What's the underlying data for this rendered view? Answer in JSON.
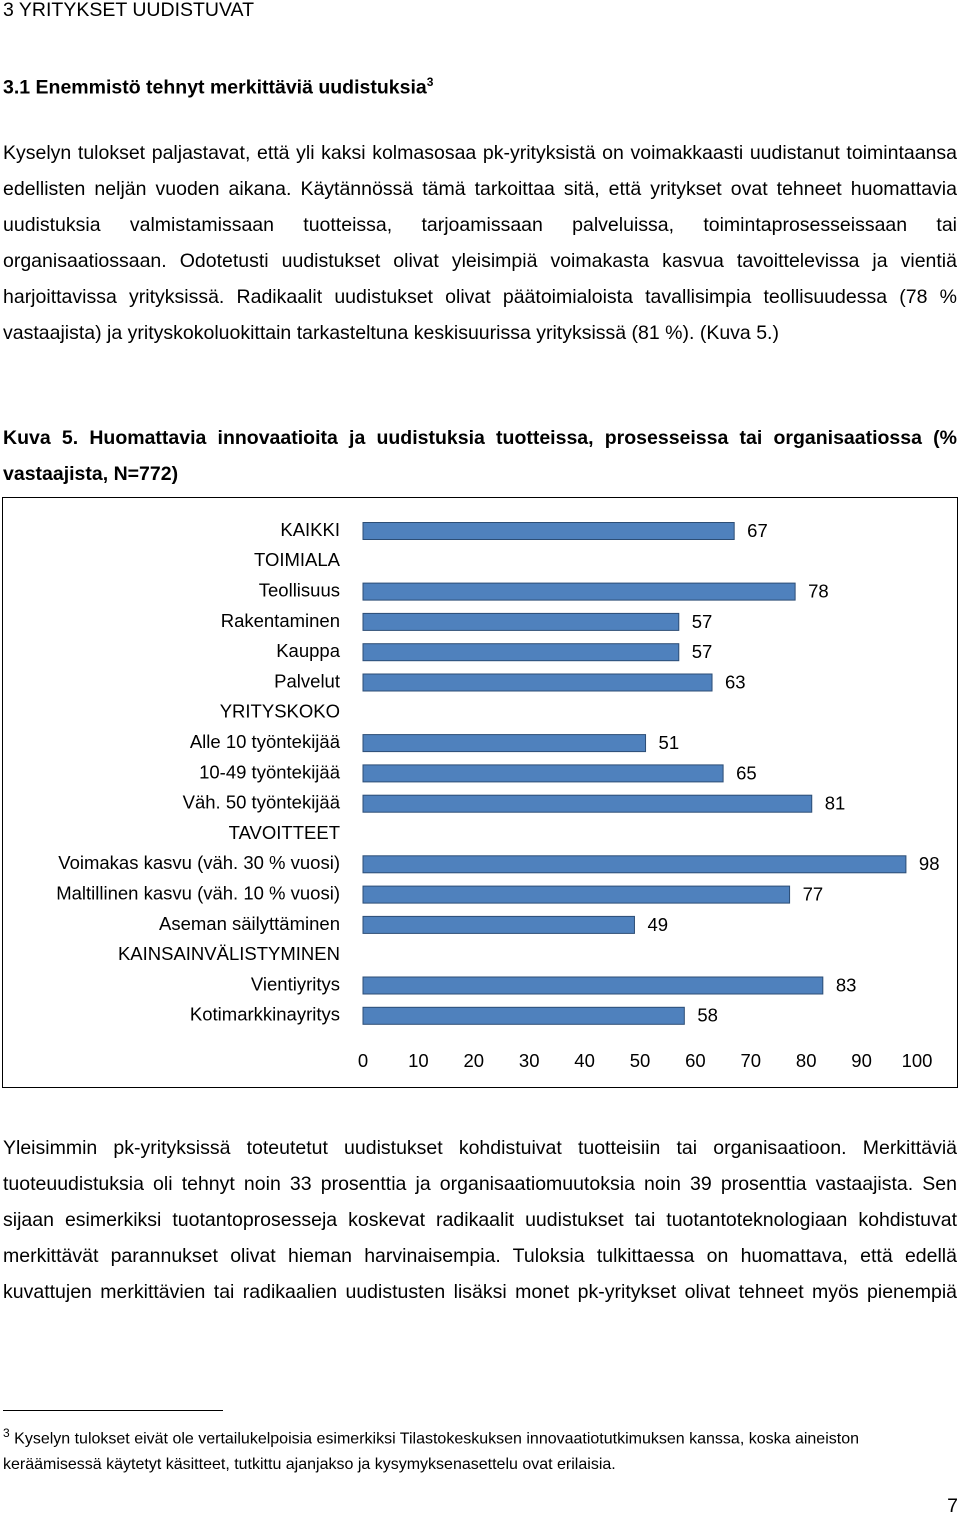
{
  "heading": "3 YRITYKSET UUDISTUVAT",
  "subheading": {
    "text": "3.1 Enemmistö tehnyt merkittäviä uudistuksia",
    "footnote_ref": "3"
  },
  "paragraphs": [
    "Kyselyn tulokset paljastavat, että yli kaksi kolmasosaa pk-yrityksistä on voimakkaasti uudistanut toimintaansa edellisten neljän vuoden aikana. Käytännössä tämä tarkoittaa sitä, että yritykset ovat tehneet huomattavia uudistuksia valmistamissaan tuotteissa, tarjoamissaan palveluissa, toimintaprosesseissaan tai organisaatiossaan. Odotetusti uudistukset olivat yleisimpiä voimakasta kasvua tavoittelevissa ja vientiä harjoittavissa yrityksissä. Radikaalit uudistukset olivat päätoimialoista tavallisimpia teollisuudessa (78 % vastaajista) ja yrityskokoluokittain tarkasteltuna keskisuurissa yrityksissä (81 %). (Kuva 5.)"
  ],
  "figure_caption": "Kuva 5. Huomattavia innovaatioita ja uudistuksia tuotteissa, prosesseissa tai organisaatiossa (% vastaajista, N=772)",
  "chart_data": {
    "type": "bar",
    "orientation": "horizontal",
    "color": "#4f81bd",
    "categories": [
      "KAIKKI",
      "TOIMIALA",
      "Teollisuus",
      "Rakentaminen",
      "Kauppa",
      "Palvelut",
      "YRITYSKOKO",
      "Alle 10 työntekijää",
      "10-49 työntekijää",
      "Väh. 50 työntekijää",
      "TAVOITTEET",
      "Voimakas kasvu (väh. 30 % vuosi)",
      "Maltillinen kasvu (väh. 10 % vuosi)",
      "Aseman säilyttäminen",
      "KAINSAINVÄLISTYMINEN",
      "Vientiyritys",
      "Kotimarkkinayritys"
    ],
    "values": [
      67,
      null,
      78,
      57,
      57,
      63,
      null,
      51,
      65,
      81,
      null,
      98,
      77,
      49,
      null,
      83,
      58
    ],
    "xlim": [
      0,
      100
    ],
    "xticks": [
      0,
      10,
      20,
      30,
      40,
      50,
      60,
      70,
      80,
      90,
      100
    ],
    "grid": false
  },
  "paragraphs_after": [
    "Yleisimmin pk-yrityksissä toteutetut uudistukset kohdistuivat tuotteisiin tai organisaatioon. Merkittäviä tuoteuudistuksia oli tehnyt noin 33 prosenttia ja organisaatiomuutoksia noin 39 prosenttia vastaajista. Sen sijaan esimerkiksi tuotantoprosesseja koskevat radikaalit uudistukset tai tuotantoteknologiaan kohdistuvat merkittävät parannukset olivat hieman harvinaisempia. Tuloksia tulkittaessa on huomattava, että edellä kuvattujen merkittävien tai radikaalien uudistusten lisäksi monet pk-yritykset olivat tehneet myös pienempiä"
  ],
  "footnote": {
    "marker": "3",
    "text": "Kyselyn tulokset eivät ole vertailukelpoisia esimerkiksi Tilastokeskuksen innovaatiotutkimuksen kanssa, koska aineiston keräämisessä käytetyt käsitteet, tutkittu ajanjakso ja kysymyksenasettelu ovat erilaisia."
  },
  "page_number": "7"
}
